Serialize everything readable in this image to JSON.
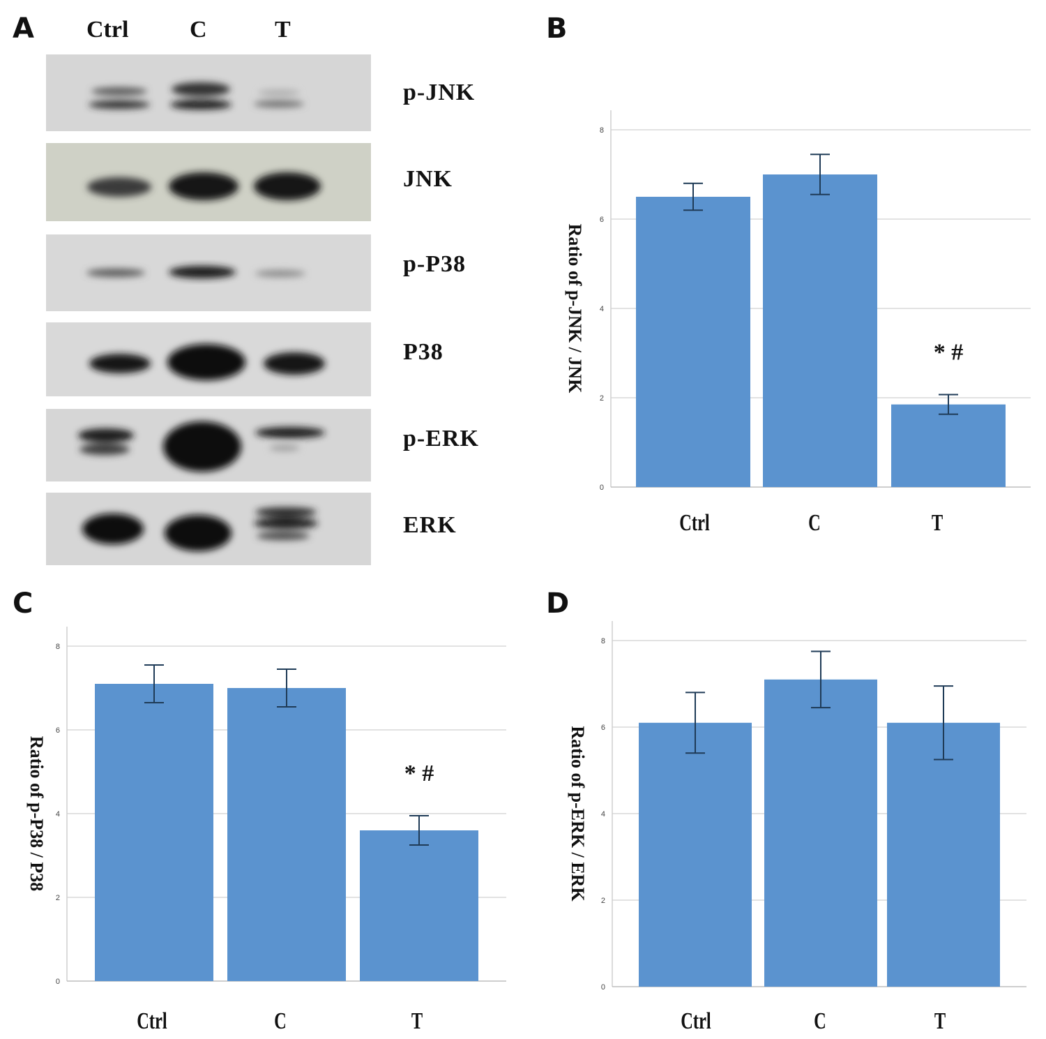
{
  "panel_letters": {
    "a": "A",
    "b": "B",
    "c": "C",
    "d": "D"
  },
  "blot": {
    "lanes": [
      "Ctrl",
      "C",
      "T"
    ],
    "proteins": [
      "p-JNK",
      "JNK",
      "p-P38",
      "P38",
      "p-ERK",
      "ERK"
    ]
  },
  "colors": {
    "bar": "#5B93CF",
    "grid": "#d9d9d9",
    "error_bar": "#1f3b57"
  },
  "chart_data": [
    {
      "panel": "B",
      "type": "bar",
      "categories": [
        "Ctrl",
        "C",
        "T"
      ],
      "values": [
        6.5,
        7.0,
        1.85
      ],
      "errors": [
        0.3,
        0.45,
        0.22
      ],
      "ylabel": "Ratio of p-JNK / JNK",
      "ylim": [
        0,
        8
      ],
      "yticks": [
        "0",
        "2",
        "4",
        "6",
        "8"
      ],
      "annotations": [
        {
          "category": "T",
          "text": "* #"
        }
      ],
      "grid": true
    },
    {
      "panel": "C",
      "type": "bar",
      "categories": [
        "Ctrl",
        "C",
        "T"
      ],
      "values": [
        7.1,
        7.0,
        3.6
      ],
      "errors": [
        0.45,
        0.45,
        0.35
      ],
      "ylabel": "Ratio of p-P38 / P38",
      "ylim": [
        0,
        8
      ],
      "yticks": [
        "0",
        "2",
        "4",
        "6",
        "8"
      ],
      "annotations": [
        {
          "category": "T",
          "text": "* #"
        }
      ],
      "grid": true
    },
    {
      "panel": "D",
      "type": "bar",
      "categories": [
        "Ctrl",
        "C",
        "T"
      ],
      "values": [
        6.1,
        7.1,
        6.1
      ],
      "errors": [
        0.7,
        0.65,
        0.85
      ],
      "ylabel": "Ratio of p-ERK / ERK",
      "ylim": [
        0,
        8
      ],
      "yticks": [
        "0",
        "2",
        "4",
        "6",
        "8"
      ],
      "annotations": [],
      "grid": true
    }
  ]
}
